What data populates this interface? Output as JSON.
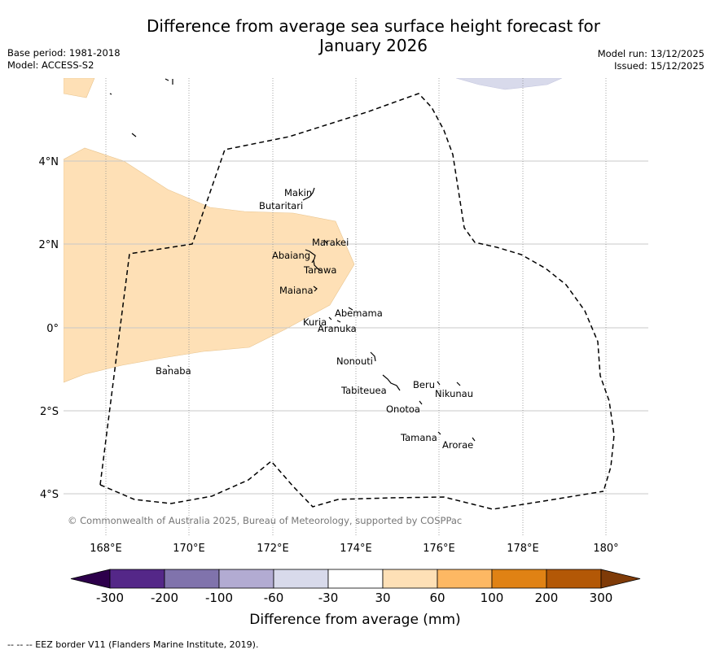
{
  "title": {
    "line1": "Difference from average sea surface height forecast for",
    "line2": "January 2026"
  },
  "meta": {
    "base_period": "Base period: 1981-2018",
    "model": "Model: ACCESS-S2",
    "model_run": "Model run: 13/12/2025",
    "issued": "Issued: 15/12/2025"
  },
  "map": {
    "lon_ticks": [
      "168°E",
      "170°E",
      "172°E",
      "174°E",
      "176°E",
      "178°E",
      "180°"
    ],
    "lat_ticks": [
      "4°N",
      "2°N",
      "0°",
      "2°S",
      "4°S"
    ],
    "copyright": "© Commonwealth of Australia 2025, Bureau of Meteorology, supported by COSPPac",
    "places": [
      {
        "name": "Makin"
      },
      {
        "name": "Butaritari"
      },
      {
        "name": "Marakei"
      },
      {
        "name": "Abaiang"
      },
      {
        "name": "Tarawa"
      },
      {
        "name": "Maiana"
      },
      {
        "name": "Abemama"
      },
      {
        "name": "Kuria"
      },
      {
        "name": "Aranuka"
      },
      {
        "name": "Nonouti"
      },
      {
        "name": "Banaba"
      },
      {
        "name": "Beru"
      },
      {
        "name": "Nikunau"
      },
      {
        "name": "Tabiteuea"
      },
      {
        "name": "Onotoa"
      },
      {
        "name": "Tamana"
      },
      {
        "name": "Arorae"
      }
    ]
  },
  "colorbar": {
    "ticks": [
      "-300",
      "-200",
      "-100",
      "-60",
      "-30",
      "30",
      "60",
      "100",
      "200",
      "300"
    ],
    "colors": [
      "#2d004b",
      "#542788",
      "#8073ac",
      "#b2abd2",
      "#d8daeb",
      "#ffffff",
      "#fee0b6",
      "#fdb863",
      "#e08214",
      "#b35806",
      "#7f3b08"
    ],
    "label": "Difference from average (mm)"
  },
  "footer": "--  --  -- EEZ border V11 (Flanders Marine Institute, 2019)."
}
